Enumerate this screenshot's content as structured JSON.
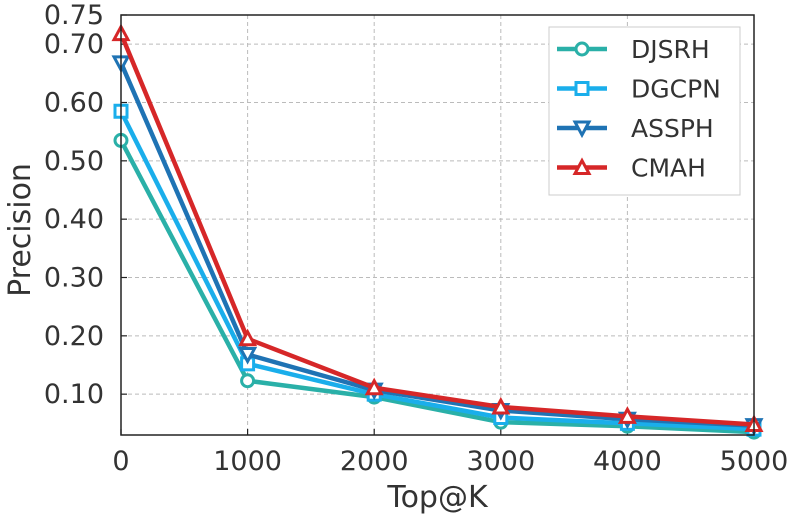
{
  "chart_data": {
    "type": "line",
    "xlabel": "Top@K",
    "ylabel": "Precision",
    "x": [
      0,
      1000,
      2000,
      3000,
      4000,
      5000
    ],
    "xlim": [
      0,
      5000
    ],
    "ylim": [
      0.03,
      0.75
    ],
    "xticks": [
      "0",
      "1000",
      "2000",
      "3000",
      "4000",
      "5000"
    ],
    "yticks": [
      {
        "value": 0.1,
        "label": "0.10"
      },
      {
        "value": 0.2,
        "label": "0.20"
      },
      {
        "value": 0.3,
        "label": "0.30"
      },
      {
        "value": 0.4,
        "label": "0.40"
      },
      {
        "value": 0.5,
        "label": "0.50"
      },
      {
        "value": 0.6,
        "label": "0.60"
      },
      {
        "value": 0.7,
        "label": "0.70"
      },
      {
        "value": 0.75,
        "label": "0.75"
      }
    ],
    "grid": true,
    "legend_position": "top-right",
    "series": [
      {
        "name": "DJSRH",
        "color": "#2ab0a8",
        "marker": "circle",
        "values": [
          0.535,
          0.123,
          0.095,
          0.052,
          0.045,
          0.035
        ]
      },
      {
        "name": "DGCPN",
        "color": "#1aaeeb",
        "marker": "square",
        "values": [
          0.585,
          0.152,
          0.1,
          0.06,
          0.05,
          0.04
        ]
      },
      {
        "name": "ASSPH",
        "color": "#1f73b4",
        "marker": "triangle-down",
        "values": [
          0.668,
          0.168,
          0.107,
          0.072,
          0.057,
          0.046
        ]
      },
      {
        "name": "CMAH",
        "color": "#d62728",
        "marker": "triangle-up",
        "values": [
          0.718,
          0.195,
          0.111,
          0.078,
          0.062,
          0.048
        ]
      }
    ]
  }
}
